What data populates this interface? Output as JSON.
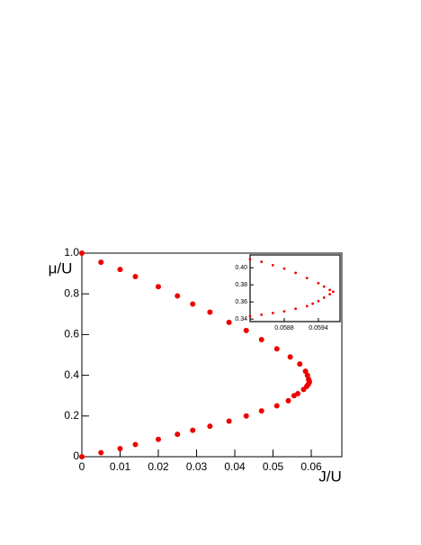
{
  "chart_data": [
    {
      "type": "scatter",
      "x_label": "J/U",
      "y_label": "μ/U",
      "xlim": [
        0,
        0.068
      ],
      "ylim": [
        0,
        1
      ],
      "xticks": [
        0,
        0.01,
        0.02,
        0.03,
        0.04,
        0.05,
        0.06
      ],
      "yticks": [
        0,
        0.2,
        0.4,
        0.6,
        0.8,
        {
          "value": 1,
          "label": "1.0"
        }
      ],
      "series": [
        {
          "color": "#ee0000",
          "x": [
            0,
            0.005,
            0.01,
            0.014,
            0.02,
            0.025,
            0.029,
            0.0335,
            0.0385,
            0.043,
            0.047,
            0.051,
            0.0545,
            0.057,
            0.0585,
            0.059,
            0.0593,
            0.0595,
            0.0595,
            0.0592,
            0.0588,
            0.058,
            0.0565,
            0.0555,
            0.054,
            0.051,
            0.047,
            0.043,
            0.0385,
            0.0335,
            0.029,
            0.025,
            0.02,
            0.014,
            0.01,
            0.005,
            0
          ],
          "values": [
            1.0,
            0.955,
            0.92,
            0.885,
            0.835,
            0.79,
            0.75,
            0.71,
            0.66,
            0.62,
            0.575,
            0.53,
            0.49,
            0.455,
            0.42,
            0.4,
            0.38,
            0.37,
            0.365,
            0.355,
            0.345,
            0.33,
            0.31,
            0.3,
            0.275,
            0.25,
            0.225,
            0.2,
            0.175,
            0.15,
            0.13,
            0.11,
            0.085,
            0.06,
            0.04,
            0.02,
            0
          ]
        }
      ]
    },
    {
      "type": "scatter",
      "xlim": [
        0.0582,
        0.05978
      ],
      "ylim": [
        0.337,
        0.415
      ],
      "xticks": [
        0.0588,
        0.0594
      ],
      "yticks": [
        {
          "value": 0.34,
          "label": "0.34"
        },
        {
          "value": 0.36,
          "label": "0.36"
        },
        {
          "value": 0.38,
          "label": "0.38"
        },
        {
          "value": 0.4,
          "label": "0.40"
        }
      ],
      "series": [
        {
          "color": "#ee0000",
          "x": [
            0.0582,
            0.0584,
            0.0586,
            0.0588,
            0.059,
            0.0592,
            0.0594,
            0.0595,
            0.0596,
            0.05966,
            0.0596,
            0.0595,
            0.0594,
            0.0593,
            0.0592,
            0.059,
            0.0588,
            0.0586,
            0.0584,
            0.0582
          ],
          "values": [
            0.41,
            0.407,
            0.403,
            0.399,
            0.394,
            0.388,
            0.382,
            0.378,
            0.374,
            0.372,
            0.369,
            0.365,
            0.361,
            0.358,
            0.355,
            0.352,
            0.349,
            0.347,
            0.345,
            0.343
          ]
        }
      ]
    }
  ]
}
